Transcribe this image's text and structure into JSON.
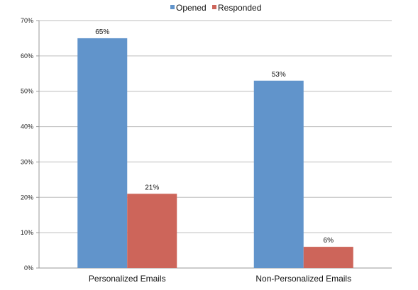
{
  "chart_data": {
    "type": "bar",
    "categories": [
      "Personalized Emails",
      "Non-Personalized Emails"
    ],
    "series": [
      {
        "name": "Opened",
        "values": [
          65,
          53
        ],
        "labels": [
          "65%",
          "53%"
        ],
        "color": "#6194cb"
      },
      {
        "name": "Responded",
        "values": [
          21,
          6
        ],
        "labels": [
          "21%",
          "6%"
        ],
        "color": "#cd655a"
      }
    ],
    "ylim": [
      0,
      70
    ],
    "yticks": [
      0,
      10,
      20,
      30,
      40,
      50,
      60,
      70
    ],
    "ytick_labels": [
      "0%",
      "10%",
      "20%",
      "30%",
      "40%",
      "50%",
      "60%",
      "70%"
    ],
    "title": "",
    "xlabel": "",
    "ylabel": "",
    "grid": true,
    "legend_position": "top-center"
  }
}
